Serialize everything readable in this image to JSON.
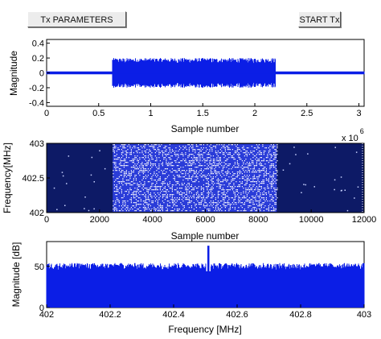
{
  "buttons": {
    "tx_params_label": "Tx PARAMETERS",
    "start_tx_label": "START Tx"
  },
  "colors": {
    "signal": "#0b1ee6",
    "spectrogram_bg": "#0d1a66",
    "burst_dense": "#2a3cd8",
    "axes": "#000000",
    "grid_dots": "#ffffff"
  },
  "chart_data": [
    {
      "type": "line",
      "ylabel": "Magnitude",
      "xlabel": "Sample number",
      "x_multiplier": "x 10^6",
      "x_multiplier_base": "x 10",
      "x_multiplier_exp": "6",
      "xlim": [
        0,
        3.05
      ],
      "ylim": [
        -0.45,
        0.45
      ],
      "xticks": [
        "0",
        "0.5",
        "1",
        "1.5",
        "2",
        "2.5",
        "3"
      ],
      "xtick_values": [
        0,
        0.5,
        1,
        1.5,
        2,
        2.5,
        3
      ],
      "yticks": [
        "0.4",
        "0.2",
        "0",
        "-0.2",
        "-0.4"
      ],
      "ytick_values": [
        0.4,
        0.2,
        0,
        -0.2,
        -0.4
      ],
      "burst_start": 0.63,
      "burst_end": 2.2,
      "burst_amplitude": 0.2,
      "idle_amplitude": 0.02
    },
    {
      "type": "heatmap",
      "ylabel": "Frequency[MHz]",
      "xlabel": "Sample number",
      "xlim": [
        0,
        12000
      ],
      "ylim": [
        402,
        403
      ],
      "xticks": [
        "0",
        "2000",
        "4000",
        "6000",
        "8000",
        "10000",
        "12000"
      ],
      "xtick_values": [
        0,
        2000,
        4000,
        6000,
        8000,
        10000,
        12000
      ],
      "yticks": [
        "403",
        "402.5",
        "402"
      ],
      "ytick_values": [
        403,
        402.5,
        402
      ],
      "burst_start": 2500,
      "burst_end": 8700
    },
    {
      "type": "area",
      "ylabel": "Magnitude [dB]",
      "xlabel": "Frequency [MHz]",
      "xlim": [
        402,
        403
      ],
      "ylim": [
        0,
        80
      ],
      "xticks": [
        "402",
        "402.2",
        "402.4",
        "402.6",
        "402.8",
        "403"
      ],
      "xtick_values": [
        402,
        402.2,
        402.4,
        402.6,
        402.8,
        403
      ],
      "yticks": [
        "50",
        "0"
      ],
      "ytick_values": [
        50,
        0
      ],
      "noise_floor_db": 50,
      "peak_freq": 402.51,
      "peak_db": 75
    }
  ]
}
